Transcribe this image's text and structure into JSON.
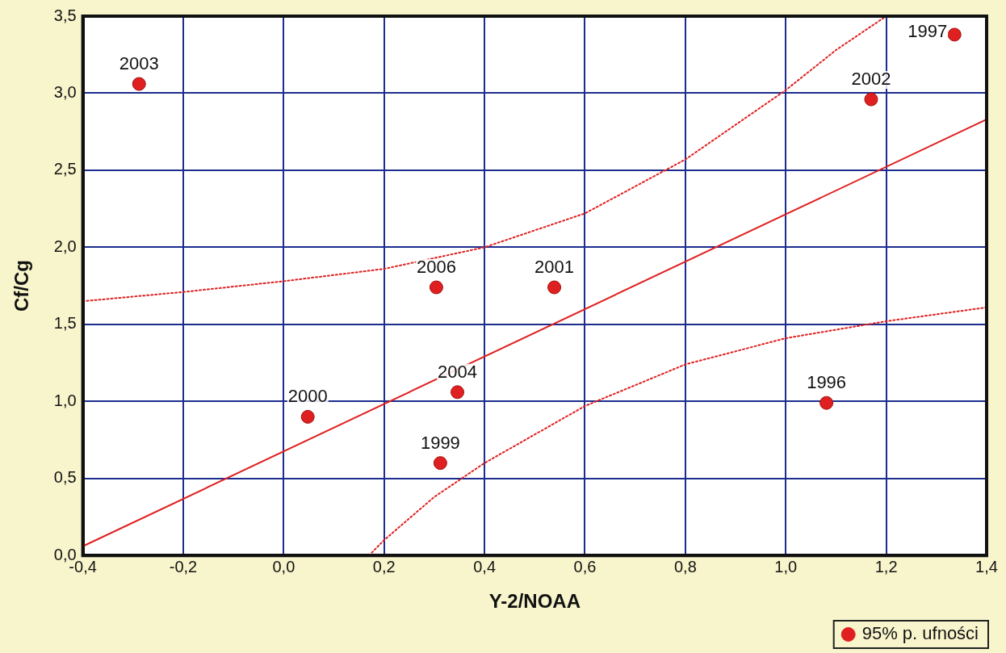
{
  "chart_data": {
    "type": "scatter",
    "xlabel": "Y-2/NOAA",
    "ylabel": "Cf/Cg",
    "xlim": [
      -0.4,
      1.4
    ],
    "ylim": [
      0,
      3.5
    ],
    "xticks": [
      {
        "value": -0.4,
        "label": "-0,4"
      },
      {
        "value": -0.2,
        "label": "-0,2"
      },
      {
        "value": 0,
        "label": "0,0"
      },
      {
        "value": 0.2,
        "label": "0,2"
      },
      {
        "value": 0.4,
        "label": "0,4"
      },
      {
        "value": 0.6,
        "label": "0,6"
      },
      {
        "value": 0.8,
        "label": "0,8"
      },
      {
        "value": 1.0,
        "label": "1,0"
      },
      {
        "value": 1.2,
        "label": "1,2"
      },
      {
        "value": 1.4,
        "label": "1,4"
      }
    ],
    "yticks": [
      {
        "value": 0,
        "label": "0,0"
      },
      {
        "value": 0.5,
        "label": "0,5"
      },
      {
        "value": 1.0,
        "label": "1,0"
      },
      {
        "value": 1.5,
        "label": "1,5"
      },
      {
        "value": 2.0,
        "label": "2,0"
      },
      {
        "value": 2.5,
        "label": "2,5"
      },
      {
        "value": 3.0,
        "label": "3,0"
      },
      {
        "value": 3.5,
        "label": "3,5"
      }
    ],
    "grid": true,
    "legend": "bottom right",
    "marker": "circle",
    "series": [
      {
        "color": "#e02020",
        "x": [
          -0.288,
          0.048,
          0.304,
          0.346,
          0.312,
          0.539,
          1.081,
          1.17,
          1.336
        ],
        "values": [
          3.06,
          0.9,
          1.74,
          1.06,
          0.6,
          1.74,
          0.99,
          2.96,
          3.38
        ]
      },
      {
        "type": "line",
        "color": "#e02020",
        "line_style": "solid",
        "marker": "none",
        "x": [
          -0.4,
          1.4
        ],
        "values": [
          0.06,
          2.83
        ]
      },
      {
        "type": "line",
        "name": "95% p. ufności",
        "color": "#e02020",
        "line_style": "dotted",
        "marker": "none",
        "x": [
          -0.4,
          -0.2,
          0,
          0.2,
          0.4,
          0.6,
          0.8,
          1.0,
          1.1,
          1.2
        ],
        "values": [
          1.65,
          1.71,
          1.78,
          1.86,
          2.0,
          2.22,
          2.57,
          3.02,
          3.28,
          3.5
        ]
      },
      {
        "type": "line",
        "color": "#e02020",
        "line_style": "dotted",
        "marker": "none",
        "x": [
          0.17,
          0.2,
          0.3,
          0.4,
          0.6,
          0.8,
          1.0,
          1.2,
          1.4
        ],
        "values": [
          0,
          0.1,
          0.38,
          0.6,
          0.97,
          1.24,
          1.41,
          1.52,
          1.61
        ]
      }
    ],
    "annotations": [
      {
        "text": "2003",
        "x": -0.288,
        "y": 3.06
      },
      {
        "text": "2000",
        "x": 0.048,
        "y": 0.9
      },
      {
        "text": "2006",
        "x": 0.304,
        "y": 1.74
      },
      {
        "text": "2004",
        "x": 0.346,
        "y": 1.06
      },
      {
        "text": "1999",
        "x": 0.312,
        "y": 0.6
      },
      {
        "text": "2001",
        "x": 0.539,
        "y": 1.74
      },
      {
        "text": "1996",
        "x": 1.081,
        "y": 0.99
      },
      {
        "text": "2002",
        "x": 1.17,
        "y": 2.96
      },
      {
        "text": "1997",
        "x": 1.336,
        "y": 3.38
      }
    ]
  }
}
